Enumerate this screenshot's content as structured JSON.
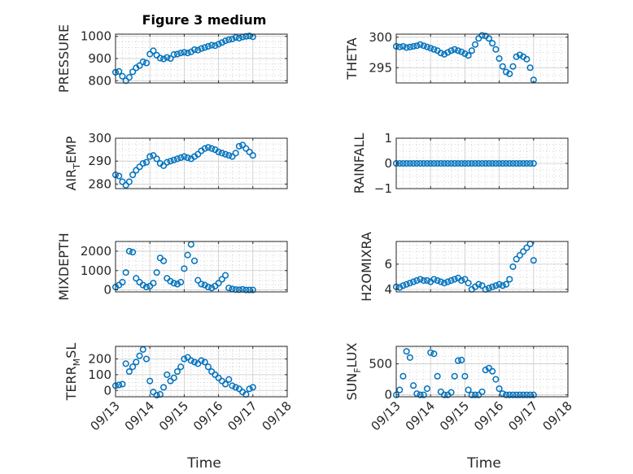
{
  "style": {
    "marker_color": "#0072bd",
    "axis_color": "#262626",
    "grid_color": "#c8c8c8"
  },
  "xticks": [
    "09/13",
    "09/14",
    "09/15",
    "09/16",
    "09/17",
    "09/18"
  ],
  "xlabel": "Time",
  "chart_data": [
    {
      "id": "pressure",
      "type": "scatter",
      "title": "Figure 3 medium",
      "ylabel": {
        "main": "PRESSURE",
        "sub": "",
        "after": ""
      },
      "ylim": [
        790,
        1010
      ],
      "yticks": [
        800,
        900,
        1000
      ],
      "xlim": [
        0,
        5
      ],
      "grid": true,
      "x": [
        0,
        0.1,
        0.2,
        0.3,
        0.4,
        0.5,
        0.6,
        0.7,
        0.8,
        0.9,
        1.0,
        1.1,
        1.2,
        1.3,
        1.4,
        1.5,
        1.6,
        1.7,
        1.8,
        1.9,
        2.0,
        2.1,
        2.2,
        2.3,
        2.4,
        2.5,
        2.6,
        2.7,
        2.8,
        2.9,
        3.0,
        3.1,
        3.2,
        3.3,
        3.4,
        3.5,
        3.6,
        3.7,
        3.8,
        3.9,
        4.0
      ],
      "y": [
        838,
        842,
        820,
        800,
        815,
        840,
        858,
        868,
        885,
        880,
        920,
        935,
        915,
        902,
        898,
        905,
        900,
        918,
        920,
        925,
        928,
        925,
        930,
        940,
        938,
        945,
        950,
        955,
        960,
        958,
        965,
        972,
        980,
        985,
        988,
        995,
        992,
        997,
        1000,
        1002,
        998
      ]
    },
    {
      "id": "theta",
      "type": "scatter",
      "title": "",
      "ylabel": {
        "main": "THETA",
        "sub": "",
        "after": ""
      },
      "ylim": [
        292.5,
        300.5
      ],
      "yticks": [
        295,
        300
      ],
      "xlim": [
        0,
        5
      ],
      "grid": true,
      "x": [
        0,
        0.1,
        0.2,
        0.3,
        0.4,
        0.5,
        0.6,
        0.7,
        0.8,
        0.9,
        1.0,
        1.1,
        1.2,
        1.3,
        1.4,
        1.5,
        1.6,
        1.7,
        1.8,
        1.9,
        2.0,
        2.1,
        2.2,
        2.3,
        2.4,
        2.5,
        2.6,
        2.7,
        2.8,
        2.9,
        3.0,
        3.1,
        3.2,
        3.3,
        3.4,
        3.5,
        3.6,
        3.7,
        3.8,
        3.9,
        4.0
      ],
      "y": [
        298.5,
        298.4,
        298.5,
        298.3,
        298.4,
        298.5,
        298.6,
        298.8,
        298.6,
        298.4,
        298.2,
        298.0,
        297.8,
        297.4,
        297.2,
        297.5,
        297.8,
        298.0,
        297.8,
        297.6,
        297.3,
        297.0,
        297.8,
        298.8,
        299.8,
        300.3,
        300.2,
        299.8,
        299.0,
        298.0,
        296.5,
        295.2,
        294.3,
        294.0,
        295.2,
        296.8,
        297.1,
        296.8,
        296.4,
        295.0,
        293.0
      ]
    },
    {
      "id": "air_temp",
      "type": "scatter",
      "title": "",
      "ylabel": {
        "main": "AIR",
        "sub": "T",
        "after": "EMP"
      },
      "ylim": [
        278,
        300
      ],
      "yticks": [
        280,
        290,
        300
      ],
      "xlim": [
        0,
        5
      ],
      "grid": true,
      "x": [
        0,
        0.1,
        0.2,
        0.3,
        0.4,
        0.5,
        0.6,
        0.7,
        0.8,
        0.9,
        1.0,
        1.1,
        1.2,
        1.3,
        1.4,
        1.5,
        1.6,
        1.7,
        1.8,
        1.9,
        2.0,
        2.1,
        2.2,
        2.3,
        2.4,
        2.5,
        2.6,
        2.7,
        2.8,
        2.9,
        3.0,
        3.1,
        3.2,
        3.3,
        3.4,
        3.5,
        3.6,
        3.7,
        3.8,
        3.9,
        4.0
      ],
      "y": [
        284,
        283.5,
        281,
        279.5,
        281,
        284,
        286,
        287.5,
        289,
        289.5,
        292,
        292.5,
        291,
        289,
        288,
        289.5,
        290,
        290.5,
        291,
        291.5,
        292,
        291.5,
        291,
        292,
        293,
        294.5,
        295.5,
        296,
        295.5,
        295,
        294,
        293.5,
        293,
        292.5,
        292,
        293.5,
        296.5,
        297,
        295.5,
        294,
        292.5
      ]
    },
    {
      "id": "rainfall",
      "type": "scatter",
      "title": "",
      "ylabel": {
        "main": "RAINFALL",
        "sub": "",
        "after": ""
      },
      "ylim": [
        -1,
        1
      ],
      "yticks": [
        -1,
        0,
        1
      ],
      "xlim": [
        0,
        5
      ],
      "grid": true,
      "x": [
        0,
        0.1,
        0.2,
        0.3,
        0.4,
        0.5,
        0.6,
        0.7,
        0.8,
        0.9,
        1.0,
        1.1,
        1.2,
        1.3,
        1.4,
        1.5,
        1.6,
        1.7,
        1.8,
        1.9,
        2.0,
        2.1,
        2.2,
        2.3,
        2.4,
        2.5,
        2.6,
        2.7,
        2.8,
        2.9,
        3.0,
        3.1,
        3.2,
        3.3,
        3.4,
        3.5,
        3.6,
        3.7,
        3.8,
        3.9,
        4.0
      ],
      "y": [
        0,
        0,
        0,
        0,
        0,
        0,
        0,
        0,
        0,
        0,
        0,
        0,
        0,
        0,
        0,
        0,
        0,
        0,
        0,
        0,
        0,
        0,
        0,
        0,
        0,
        0,
        0,
        0,
        0,
        0,
        0,
        0,
        0,
        0,
        0,
        0,
        0,
        0,
        0,
        0,
        0
      ]
    },
    {
      "id": "mixdepth",
      "type": "scatter",
      "title": "",
      "ylabel": {
        "main": "MIXDEPTH",
        "sub": "",
        "after": ""
      },
      "ylim": [
        -100,
        2500
      ],
      "yticks": [
        0,
        1000,
        2000
      ],
      "xlim": [
        0,
        5
      ],
      "grid": true,
      "x": [
        0,
        0.1,
        0.2,
        0.3,
        0.4,
        0.5,
        0.6,
        0.7,
        0.8,
        0.9,
        1.0,
        1.1,
        1.2,
        1.3,
        1.4,
        1.5,
        1.6,
        1.7,
        1.8,
        1.9,
        2.0,
        2.1,
        2.2,
        2.3,
        2.4,
        2.5,
        2.6,
        2.7,
        2.8,
        2.9,
        3.0,
        3.1,
        3.2,
        3.3,
        3.4,
        3.5,
        3.6,
        3.7,
        3.8,
        3.9,
        4.0
      ],
      "y": [
        150,
        250,
        400,
        900,
        2000,
        1950,
        600,
        400,
        250,
        150,
        200,
        350,
        900,
        1650,
        1500,
        600,
        450,
        350,
        300,
        400,
        1100,
        1800,
        2350,
        1500,
        500,
        300,
        250,
        150,
        100,
        200,
        350,
        550,
        750,
        100,
        50,
        20,
        10,
        30,
        0,
        0,
        0
      ]
    },
    {
      "id": "h2omixra",
      "type": "scatter",
      "title": "",
      "ylabel": {
        "main": "H2OMIXRA",
        "sub": "",
        "after": ""
      },
      "ylim": [
        3.8,
        7.8
      ],
      "yticks": [
        4,
        6
      ],
      "xlim": [
        0,
        5
      ],
      "grid": true,
      "x": [
        0,
        0.1,
        0.2,
        0.3,
        0.4,
        0.5,
        0.6,
        0.7,
        0.8,
        0.9,
        1.0,
        1.1,
        1.2,
        1.3,
        1.4,
        1.5,
        1.6,
        1.7,
        1.8,
        1.9,
        2.0,
        2.1,
        2.2,
        2.3,
        2.4,
        2.5,
        2.6,
        2.7,
        2.8,
        2.9,
        3.0,
        3.1,
        3.2,
        3.3,
        3.4,
        3.5,
        3.6,
        3.7,
        3.8,
        3.9,
        4.0
      ],
      "y": [
        4.2,
        4.15,
        4.3,
        4.4,
        4.5,
        4.6,
        4.7,
        4.8,
        4.7,
        4.7,
        4.6,
        4.8,
        4.7,
        4.6,
        4.5,
        4.6,
        4.7,
        4.8,
        4.9,
        4.7,
        4.8,
        4.5,
        4.0,
        4.2,
        4.4,
        4.3,
        4.0,
        4.1,
        4.2,
        4.3,
        4.4,
        4.3,
        4.4,
        4.8,
        5.8,
        6.4,
        6.7,
        7.0,
        7.3,
        7.6,
        6.3
      ]
    },
    {
      "id": "terr_msl",
      "type": "scatter",
      "title": "",
      "ylabel": {
        "main": "TERR",
        "sub": "M",
        "after": "SL"
      },
      "ylim": [
        -40,
        280
      ],
      "yticks": [
        0,
        100,
        200
      ],
      "xlim": [
        0,
        5
      ],
      "grid": true,
      "x": [
        0,
        0.1,
        0.2,
        0.3,
        0.4,
        0.5,
        0.6,
        0.7,
        0.8,
        0.9,
        1.0,
        1.1,
        1.2,
        1.3,
        1.4,
        1.5,
        1.6,
        1.7,
        1.8,
        1.9,
        2.0,
        2.1,
        2.2,
        2.3,
        2.4,
        2.5,
        2.6,
        2.7,
        2.8,
        2.9,
        3.0,
        3.1,
        3.2,
        3.3,
        3.4,
        3.5,
        3.6,
        3.7,
        3.8,
        3.9,
        4.0
      ],
      "y": [
        30,
        35,
        40,
        170,
        120,
        150,
        180,
        220,
        260,
        200,
        60,
        -10,
        -30,
        -25,
        20,
        100,
        60,
        80,
        120,
        150,
        200,
        210,
        190,
        180,
        170,
        190,
        180,
        150,
        120,
        100,
        80,
        60,
        40,
        70,
        30,
        20,
        10,
        -10,
        -25,
        10,
        20
      ]
    },
    {
      "id": "sun_flux",
      "type": "scatter",
      "title": "",
      "ylabel": {
        "main": "SUN",
        "sub": "F",
        "after": "LUX"
      },
      "ylim": [
        -30,
        780
      ],
      "yticks": [
        0,
        500
      ],
      "xlim": [
        0,
        5
      ],
      "grid": true,
      "x": [
        0,
        0.1,
        0.2,
        0.3,
        0.4,
        0.5,
        0.6,
        0.7,
        0.8,
        0.9,
        1.0,
        1.1,
        1.2,
        1.3,
        1.4,
        1.5,
        1.6,
        1.7,
        1.8,
        1.9,
        2.0,
        2.1,
        2.2,
        2.3,
        2.4,
        2.5,
        2.6,
        2.7,
        2.8,
        2.9,
        3.0,
        3.1,
        3.2,
        3.3,
        3.4,
        3.5,
        3.6,
        3.7,
        3.8,
        3.9,
        4.0
      ],
      "y": [
        0,
        80,
        300,
        700,
        600,
        150,
        20,
        0,
        0,
        100,
        680,
        660,
        300,
        50,
        0,
        0,
        40,
        300,
        550,
        560,
        300,
        80,
        0,
        0,
        0,
        50,
        400,
        430,
        380,
        250,
        100,
        20,
        0,
        0,
        0,
        0,
        0,
        0,
        0,
        0,
        0
      ]
    }
  ]
}
